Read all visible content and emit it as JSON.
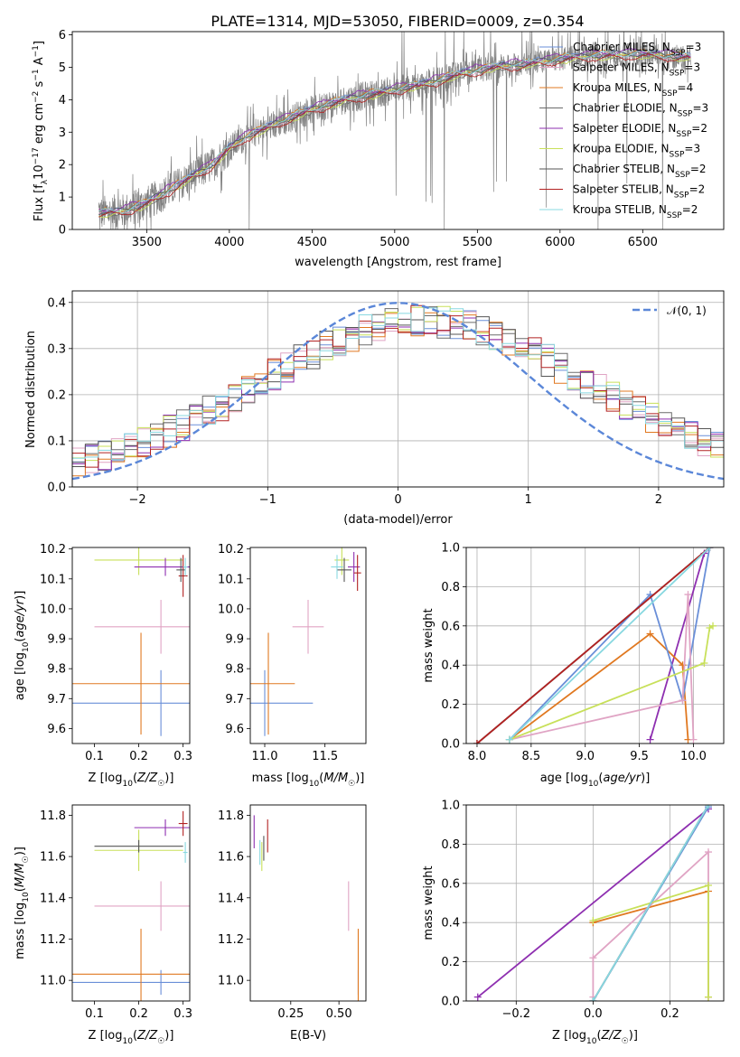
{
  "title": "PLATE=1314, MJD=53050, FIBERID=0009, z=0.354",
  "colors": {
    "chabrier_miles": "#6a8fd8",
    "salpeter_miles": "#e0a4c4",
    "kroupa_miles": "#e07820",
    "chabrier_elodie": "#6b6b6b",
    "salpeter_elodie": "#8e2fb0",
    "kroupa_elodie": "#c8e05a",
    "chabrier_stelib": "#555555",
    "salpeter_stelib": "#b22222",
    "kroupa_stelib": "#88d8e0",
    "data": "#808080",
    "gauss": "#5b87d8"
  },
  "chart_data": [
    {
      "id": "spectrum",
      "type": "line",
      "xlabel": "wavelength [Angstrom, rest frame]",
      "ylabel": "Flux [f_λ 10^-17 erg cm^-2 s^-1 A^-1]",
      "xlim": [
        3050,
        6990
      ],
      "ylim": [
        0,
        6.1
      ],
      "xticks": [
        3500,
        4000,
        4500,
        5000,
        5500,
        6000,
        6500
      ],
      "yticks": [
        0,
        1,
        2,
        3,
        4,
        5,
        6
      ],
      "model_knots": {
        "x": [
          3200,
          3350,
          3500,
          3700,
          3900,
          4000,
          4100,
          4300,
          4500,
          4700,
          4900,
          5000,
          5200,
          5400,
          5600,
          5800,
          6000,
          6200,
          6500,
          6800
        ],
        "y": [
          0.5,
          0.55,
          0.8,
          1.4,
          2.0,
          2.5,
          2.85,
          3.3,
          3.7,
          4.0,
          4.2,
          4.3,
          4.5,
          4.8,
          5.0,
          5.1,
          5.25,
          5.35,
          5.4,
          5.3
        ]
      },
      "legend": [
        {
          "name": "Chabrier MILES",
          "nssp": "3",
          "color": "#6a8fd8"
        },
        {
          "name": "Salpeter MILES",
          "nssp": "3",
          "color": "#e0a4c4"
        },
        {
          "name": "Kroupa MILES",
          "nssp": "4",
          "color": "#e07820"
        },
        {
          "name": "Chabrier ELODIE",
          "nssp": "3",
          "color": "#6b6b6b"
        },
        {
          "name": "Salpeter ELODIE",
          "nssp": "2",
          "color": "#8e2fb0"
        },
        {
          "name": "Kroupa ELODIE",
          "nssp": "3",
          "color": "#c8e05a"
        },
        {
          "name": "Chabrier STELIB",
          "nssp": "2",
          "color": "#555555"
        },
        {
          "name": "Salpeter STELIB",
          "nssp": "2",
          "color": "#b22222"
        },
        {
          "name": "Kroupa STELIB",
          "nssp": "2",
          "color": "#88d8e0"
        }
      ]
    },
    {
      "id": "residuals",
      "type": "histogram",
      "xlabel": "(data-model)/error",
      "ylabel": "Normed distribution",
      "xlim": [
        -2.5,
        2.5
      ],
      "ylim": [
        0,
        0.425
      ],
      "xticks": [
        -2,
        -1,
        0,
        1,
        2
      ],
      "yticks": [
        0.0,
        0.1,
        0.2,
        0.3,
        0.4
      ],
      "grid": true,
      "gaussian_label": "N(0,1)"
    },
    {
      "id": "age_vs_Z",
      "type": "errorbar",
      "xlabel": "Z [log10(Z/Z☉)]",
      "ylabel": "age  [log10(age/yr)]",
      "xlim": [
        0.05,
        0.315
      ],
      "ylim": [
        9.55,
        10.205
      ],
      "xticks": [
        0.1,
        0.2,
        0.3
      ],
      "yticks": [
        9.6,
        9.7,
        9.8,
        9.9,
        10.0,
        10.1,
        10.2
      ],
      "points": [
        {
          "x": 0.25,
          "xerr": 0.2,
          "y": 9.685,
          "yerr": 0.11,
          "color": "#6a8fd8"
        },
        {
          "x": 0.205,
          "xerr": 0.16,
          "y": 9.75,
          "yerr": 0.17,
          "color": "#e07820"
        },
        {
          "x": 0.25,
          "xerr": 0.15,
          "y": 9.94,
          "yerr": 0.09,
          "color": "#e0a4c4"
        },
        {
          "x": 0.2,
          "xerr": 0.1,
          "y": 10.163,
          "yerr": 0.05,
          "color": "#c8e05a"
        },
        {
          "x": 0.26,
          "xerr": 0.07,
          "y": 10.14,
          "yerr": 0.03,
          "color": "#8e2fb0"
        },
        {
          "x": 0.3,
          "xerr": 0.01,
          "y": 10.11,
          "yerr": 0.07,
          "color": "#b22222"
        },
        {
          "x": 0.295,
          "xerr": 0.01,
          "y": 10.13,
          "yerr": 0.04,
          "color": "#555555"
        },
        {
          "x": 0.305,
          "xerr": 0.005,
          "y": 10.14,
          "yerr": 0.03,
          "color": "#88d8e0"
        }
      ]
    },
    {
      "id": "age_vs_mass",
      "type": "errorbar",
      "xlabel": "mass [log10(M/M☉)]",
      "ylabel": "",
      "xlim": [
        10.88,
        11.84
      ],
      "ylim": [
        9.55,
        10.205
      ],
      "xticks": [
        11.0,
        11.5
      ],
      "yticks": [
        9.6,
        9.7,
        9.8,
        9.9,
        10.0,
        10.1,
        10.2
      ],
      "points": [
        {
          "x": 11.0,
          "xerr": 0.4,
          "y": 9.685,
          "yerr": 0.11,
          "color": "#6a8fd8"
        },
        {
          "x": 11.03,
          "xerr": 0.22,
          "y": 9.75,
          "yerr": 0.17,
          "color": "#e07820"
        },
        {
          "x": 11.36,
          "xerr": 0.13,
          "y": 9.94,
          "yerr": 0.09,
          "color": "#e0a4c4"
        },
        {
          "x": 11.64,
          "xerr": 0.06,
          "y": 10.163,
          "yerr": 0.05,
          "color": "#c8e05a"
        },
        {
          "x": 11.74,
          "xerr": 0.05,
          "y": 10.14,
          "yerr": 0.05,
          "color": "#8e2fb0"
        },
        {
          "x": 11.77,
          "xerr": 0.03,
          "y": 10.12,
          "yerr": 0.06,
          "color": "#b22222"
        },
        {
          "x": 11.66,
          "xerr": 0.06,
          "y": 10.13,
          "yerr": 0.04,
          "color": "#555555"
        },
        {
          "x": 11.6,
          "xerr": 0.05,
          "y": 10.14,
          "yerr": 0.04,
          "color": "#88d8e0"
        }
      ]
    },
    {
      "id": "weight_vs_age",
      "type": "line",
      "xlabel": "age  [log10(age/yr)]",
      "ylabel": "mass weight",
      "xlim": [
        7.9,
        10.28
      ],
      "ylim": [
        0,
        1.0
      ],
      "xticks": [
        8.0,
        8.5,
        9.0,
        9.5,
        10.0
      ],
      "yticks": [
        0.0,
        0.2,
        0.4,
        0.6,
        0.8,
        1.0
      ],
      "grid": true,
      "series": [
        {
          "color": "#8e2fb0",
          "x": [
            9.6,
            10.1,
            10.15
          ],
          "y": [
            0.02,
            0.97,
            1.0
          ]
        },
        {
          "color": "#e07820",
          "x": [
            8.3,
            9.6,
            9.9,
            9.95
          ],
          "y": [
            0.02,
            0.56,
            0.4,
            0.02
          ]
        },
        {
          "color": "#6a8fd8",
          "x": [
            8.3,
            9.6,
            9.9,
            10.15
          ],
          "y": [
            0.02,
            0.76,
            0.22,
            1.0
          ]
        },
        {
          "color": "#e0a4c4",
          "x": [
            8.3,
            9.9,
            9.95,
            10.0
          ],
          "y": [
            0.02,
            0.22,
            0.76,
            0.02
          ]
        },
        {
          "color": "#c8e05a",
          "x": [
            8.3,
            10.1,
            10.15,
            10.18
          ],
          "y": [
            0.02,
            0.41,
            0.59,
            0.6
          ]
        },
        {
          "color": "#555555",
          "x": [
            8.0,
            10.15
          ],
          "y": [
            0.0,
            1.0
          ]
        },
        {
          "color": "#b22222",
          "x": [
            8.0,
            10.15
          ],
          "y": [
            0.0,
            1.0
          ]
        },
        {
          "color": "#88d8e0",
          "x": [
            8.3,
            10.15
          ],
          "y": [
            0.02,
            1.0
          ]
        }
      ]
    },
    {
      "id": "mass_vs_Z",
      "type": "errorbar",
      "xlabel": "Z [log10(Z/Z☉)]",
      "ylabel": "mass [log10(M/M☉)]",
      "xlim": [
        0.05,
        0.315
      ],
      "ylim": [
        10.9,
        11.85
      ],
      "xticks": [
        0.1,
        0.2,
        0.3
      ],
      "yticks": [
        11.0,
        11.2,
        11.4,
        11.6,
        11.8
      ],
      "points": [
        {
          "x": 0.25,
          "xerr": 0.2,
          "y": 10.99,
          "yerr": 0.06,
          "color": "#6a8fd8"
        },
        {
          "x": 0.205,
          "xerr": 0.16,
          "y": 11.03,
          "yerr": 0.22,
          "color": "#e07820"
        },
        {
          "x": 0.25,
          "xerr": 0.15,
          "y": 11.36,
          "yerr": 0.12,
          "color": "#e0a4c4"
        },
        {
          "x": 0.2,
          "xerr": 0.1,
          "y": 11.63,
          "yerr": 0.1,
          "color": "#c8e05a"
        },
        {
          "x": 0.26,
          "xerr": 0.07,
          "y": 11.74,
          "yerr": 0.04,
          "color": "#8e2fb0"
        },
        {
          "x": 0.3,
          "xerr": 0.01,
          "y": 11.76,
          "yerr": 0.06,
          "color": "#b22222"
        },
        {
          "x": 0.2,
          "xerr": 0.1,
          "y": 11.65,
          "yerr": 0.03,
          "color": "#555555"
        },
        {
          "x": 0.305,
          "xerr": 0.005,
          "y": 11.62,
          "yerr": 0.05,
          "color": "#88d8e0"
        }
      ]
    },
    {
      "id": "mass_vs_ebv",
      "type": "errorbar",
      "xlabel": "E(B-V)",
      "ylabel": "",
      "xlim": [
        0.04,
        0.64
      ],
      "ylim": [
        10.9,
        11.85
      ],
      "xticks": [
        0.25,
        0.5
      ],
      "yticks": [
        11.0,
        11.2,
        11.4,
        11.6,
        11.8
      ],
      "points": [
        {
          "x": 0.6,
          "xerr": 0.0,
          "y": 10.99,
          "yerr": 0.06,
          "color": "#6a8fd8"
        },
        {
          "x": 0.6,
          "xerr": 0.0,
          "y": 11.03,
          "yerr": 0.22,
          "color": "#e07820"
        },
        {
          "x": 0.55,
          "xerr": 0.0,
          "y": 11.36,
          "yerr": 0.12,
          "color": "#e0a4c4"
        },
        {
          "x": 0.1,
          "xerr": 0.0,
          "y": 11.6,
          "yerr": 0.07,
          "color": "#c8e05a"
        },
        {
          "x": 0.06,
          "xerr": 0.0,
          "y": 11.72,
          "yerr": 0.08,
          "color": "#8e2fb0"
        },
        {
          "x": 0.13,
          "xerr": 0.0,
          "y": 11.7,
          "yerr": 0.08,
          "color": "#b22222"
        },
        {
          "x": 0.11,
          "xerr": 0.0,
          "y": 11.64,
          "yerr": 0.06,
          "color": "#555555"
        },
        {
          "x": 0.09,
          "xerr": 0.0,
          "y": 11.62,
          "yerr": 0.06,
          "color": "#88d8e0"
        }
      ]
    },
    {
      "id": "weight_vs_Z",
      "type": "line",
      "xlabel": "Z [log10(Z/Z☉)]",
      "ylabel": "mass weight",
      "xlim": [
        -0.33,
        0.34
      ],
      "ylim": [
        0,
        1.0
      ],
      "xticks": [
        -0.2,
        0.0,
        0.2
      ],
      "yticks": [
        0.0,
        0.2,
        0.4,
        0.6,
        0.8,
        1.0
      ],
      "grid": true,
      "series": [
        {
          "color": "#8e2fb0",
          "x": [
            -0.3,
            0.3
          ],
          "y": [
            0.02,
            0.98
          ]
        },
        {
          "color": "#e07820",
          "x": [
            0.0,
            0.3,
            0.3
          ],
          "y": [
            0.4,
            0.56,
            0.02
          ]
        },
        {
          "color": "#6a8fd8",
          "x": [
            0.0,
            0.3
          ],
          "y": [
            0.0,
            0.99
          ]
        },
        {
          "color": "#e0a4c4",
          "x": [
            0.0,
            0.0,
            0.3,
            0.3
          ],
          "y": [
            0.02,
            0.22,
            0.76,
            0.02
          ]
        },
        {
          "color": "#c8e05a",
          "x": [
            0.0,
            0.3,
            0.3
          ],
          "y": [
            0.41,
            0.59,
            0.02
          ]
        },
        {
          "color": "#555555",
          "x": [
            0.0,
            0.3
          ],
          "y": [
            0.0,
            1.0
          ]
        },
        {
          "color": "#88d8e0",
          "x": [
            0.0,
            0.3
          ],
          "y": [
            0.0,
            1.0
          ]
        }
      ]
    }
  ]
}
